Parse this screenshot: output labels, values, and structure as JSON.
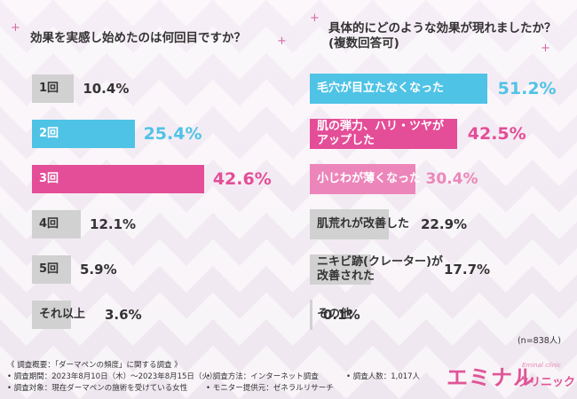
{
  "chart_data": [
    {
      "type": "bar",
      "title": "効果を実感し始めたのは何回目ですか？",
      "categories": [
        "1回",
        "2回",
        "3回",
        "4回",
        "5回",
        "それ以上"
      ],
      "values": [
        10.4,
        25.4,
        42.6,
        12.1,
        5.9,
        3.6
      ],
      "value_labels": [
        "10.4%",
        "25.4%",
        "42.6%",
        "12.1%",
        "5.9%",
        "3.6%"
      ],
      "highlight": [
        "gray",
        "blue",
        "pink",
        "gray",
        "gray",
        "gray"
      ]
    },
    {
      "type": "bar",
      "title": "具体的にどのような効果が現れましたか？(複数回答可)",
      "categories": [
        "毛穴が目立たなくなった",
        "肌の弾力、ハリ・ツヤがアップした",
        "小じわが薄くなった",
        "肌荒れが改善した",
        "ニキビ跡(クレーター)が改善された",
        "その他"
      ],
      "category_lines": [
        [
          "毛穴が目立たなくなった"
        ],
        [
          "肌の弾力、ハリ・ツヤが",
          "アップした"
        ],
        [
          "小じわが薄くなった"
        ],
        [
          "肌荒れが改善した"
        ],
        [
          "ニキビ跡(クレーター)が",
          "改善された"
        ],
        [
          "その他"
        ]
      ],
      "values": [
        51.2,
        42.5,
        30.4,
        22.9,
        17.7,
        0.1
      ],
      "value_labels": [
        "51.2%",
        "42.5%",
        "30.4%",
        "22.9%",
        "17.7%",
        "0.1%"
      ],
      "highlight": [
        "blue",
        "pink",
        "lightpink",
        "gray",
        "gray",
        "gray"
      ],
      "note": "(n=838人)"
    }
  ],
  "colors": {
    "blue": "#4fc3e6",
    "pink": "#e44d97",
    "lightpink": "#ec86ba",
    "gray": "#d1d1d1",
    "label_dark": "#333333",
    "accent_text": "#e05596"
  },
  "footer": {
    "line1": "《 調査概要：「ダーマペンの頻度」に関する調査 》",
    "period": "• 調査期間：2023年8月10日（木）〜2023年8月15日（火）",
    "target": "• 調査対象：現在ダーマペンの施術を受けている女性",
    "method": "• 調査方法：インターネット調査",
    "provider": "• モニター提供元：ゼネラルリサーチ",
    "count": "• 調査人数：1,017人"
  },
  "logo": {
    "main": "エミナル",
    "sub": "クリニック",
    "en": "Eminal clinic"
  }
}
